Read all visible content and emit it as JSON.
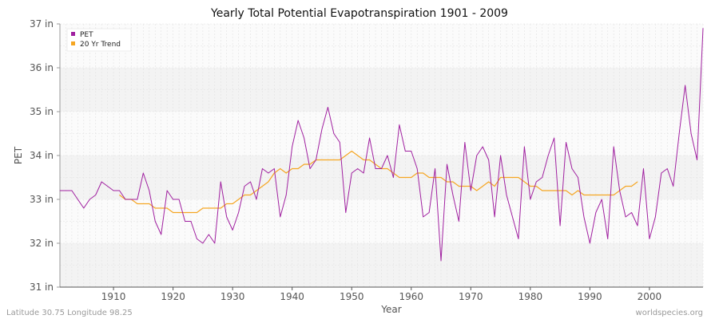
{
  "chart_data": {
    "type": "line",
    "title": "Yearly Total Potential Evapotranspiration 1901 - 2009",
    "xlabel": "Year",
    "ylabel": "PET",
    "xlim": [
      1901,
      2009
    ],
    "ylim": [
      31,
      37
    ],
    "x_ticks": [
      1910,
      1920,
      1930,
      1940,
      1950,
      1960,
      1970,
      1980,
      1990,
      2000
    ],
    "y_ticks": [
      31,
      32,
      33,
      34,
      35,
      36,
      37
    ],
    "y_tick_labels": [
      "31 in",
      "32 in",
      "33 in",
      "34 in",
      "35 in",
      "36 in",
      "37 in"
    ],
    "grid": true,
    "legend_position": "top-left",
    "series": [
      {
        "name": "PET",
        "color": "#a020a0",
        "x_start": 1901,
        "values": [
          33.2,
          33.2,
          33.2,
          33.0,
          32.8,
          33.0,
          33.1,
          33.4,
          33.3,
          33.2,
          33.2,
          33.0,
          33.0,
          33.0,
          33.6,
          33.2,
          32.5,
          32.2,
          33.2,
          33.0,
          33.0,
          32.5,
          32.5,
          32.1,
          32.0,
          32.2,
          32.0,
          33.4,
          32.6,
          32.3,
          32.7,
          33.3,
          33.4,
          33.0,
          33.7,
          33.6,
          33.7,
          32.6,
          33.1,
          34.2,
          34.8,
          34.4,
          33.7,
          33.9,
          34.6,
          35.1,
          34.5,
          34.3,
          32.7,
          33.6,
          33.7,
          33.6,
          34.4,
          33.7,
          33.7,
          34.0,
          33.5,
          34.7,
          34.1,
          34.1,
          33.7,
          32.6,
          32.7,
          33.7,
          31.6,
          33.8,
          33.1,
          32.5,
          34.3,
          33.2,
          34.0,
          34.2,
          33.9,
          32.6,
          34.0,
          33.1,
          32.6,
          32.1,
          34.2,
          33.0,
          33.4,
          33.5,
          34.0,
          34.4,
          32.4,
          34.3,
          33.7,
          33.5,
          32.6,
          32.0,
          32.7,
          33.0,
          32.1,
          34.2,
          33.2,
          32.6,
          32.7,
          32.4,
          33.7,
          32.1,
          32.6,
          33.6,
          33.7,
          33.3,
          34.5,
          35.6,
          34.5,
          33.9,
          36.9
        ]
      },
      {
        "name": "20 Yr Trend",
        "color": "#f5a623",
        "x_start": 1911,
        "values": [
          33.1,
          33.0,
          33.0,
          32.9,
          32.9,
          32.9,
          32.8,
          32.8,
          32.8,
          32.7,
          32.7,
          32.7,
          32.7,
          32.7,
          32.8,
          32.8,
          32.8,
          32.8,
          32.9,
          32.9,
          33.0,
          33.1,
          33.1,
          33.2,
          33.3,
          33.4,
          33.6,
          33.7,
          33.6,
          33.7,
          33.7,
          33.8,
          33.8,
          33.9,
          33.9,
          33.9,
          33.9,
          33.9,
          34.0,
          34.1,
          34.0,
          33.9,
          33.9,
          33.8,
          33.7,
          33.7,
          33.6,
          33.5,
          33.5,
          33.5,
          33.6,
          33.6,
          33.5,
          33.5,
          33.5,
          33.4,
          33.4,
          33.3,
          33.3,
          33.3,
          33.2,
          33.3,
          33.4,
          33.3,
          33.5,
          33.5,
          33.5,
          33.5,
          33.4,
          33.3,
          33.3,
          33.2,
          33.2,
          33.2,
          33.2,
          33.2,
          33.1,
          33.2,
          33.1,
          33.1,
          33.1,
          33.1,
          33.1,
          33.1,
          33.2,
          33.3,
          33.3,
          33.4
        ]
      }
    ]
  },
  "footer": {
    "left": "Latitude 30.75 Longitude 98.25",
    "right": "worldspecies.org"
  }
}
